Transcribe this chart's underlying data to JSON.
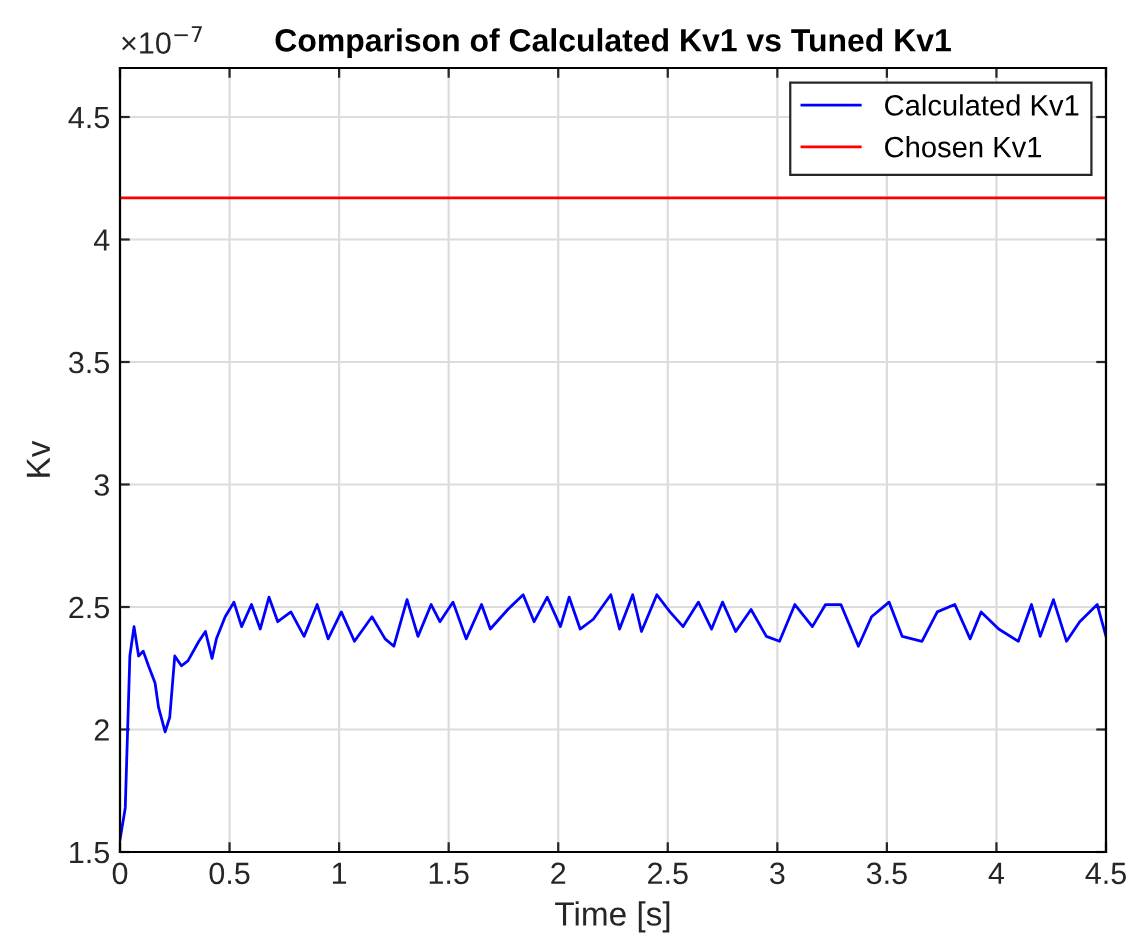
{
  "chart_data": {
    "type": "line",
    "title": "Comparison of Calculated Kv1 vs Tuned Kv1",
    "xlabel": "Time [s]",
    "ylabel": "Kv",
    "annotations": [
      "×10$^{−7}$"
    ],
    "xlim": [
      0,
      4.5
    ],
    "xticks": [
      0,
      0.5,
      1,
      1.5,
      2,
      2.5,
      3,
      3.5,
      4,
      4.5
    ],
    "ylim": [
      1.5,
      4.7
    ],
    "yticks": [
      1.5,
      2,
      2.5,
      3,
      3.5,
      4,
      4.5
    ],
    "grid": true,
    "legend": "top right",
    "marker": "none",
    "line_style": "solid",
    "series": [
      {
        "name": "Calculated Kv1",
        "color": "#0000ff",
        "x": [
          0,
          0.024,
          0.045,
          0.064,
          0.085,
          0.106,
          0.13,
          0.16,
          0.176,
          0.206,
          0.227,
          0.25,
          0.28,
          0.31,
          0.36,
          0.39,
          0.42,
          0.44,
          0.48,
          0.52,
          0.555,
          0.6,
          0.64,
          0.68,
          0.72,
          0.78,
          0.84,
          0.9,
          0.95,
          1.01,
          1.07,
          1.15,
          1.21,
          1.25,
          1.31,
          1.36,
          1.42,
          1.46,
          1.52,
          1.58,
          1.65,
          1.69,
          1.77,
          1.84,
          1.89,
          1.95,
          2.01,
          2.05,
          2.1,
          2.16,
          2.24,
          2.28,
          2.34,
          2.38,
          2.45,
          2.51,
          2.57,
          2.64,
          2.7,
          2.75,
          2.81,
          2.88,
          2.95,
          3.01,
          3.08,
          3.16,
          3.22,
          3.29,
          3.37,
          3.43,
          3.51,
          3.57,
          3.66,
          3.73,
          3.81,
          3.88,
          3.93,
          4.01,
          4.1,
          4.16,
          4.2,
          4.26,
          4.32,
          4.38,
          4.46,
          4.5
        ],
        "values": [
          1.55,
          1.68,
          2.3,
          2.42,
          2.3,
          2.32,
          2.26,
          2.19,
          2.09,
          1.99,
          2.05,
          2.3,
          2.26,
          2.28,
          2.36,
          2.4,
          2.29,
          2.37,
          2.46,
          2.52,
          2.42,
          2.51,
          2.41,
          2.54,
          2.44,
          2.48,
          2.38,
          2.51,
          2.37,
          2.48,
          2.36,
          2.46,
          2.37,
          2.34,
          2.53,
          2.38,
          2.51,
          2.44,
          2.52,
          2.37,
          2.51,
          2.41,
          2.49,
          2.55,
          2.44,
          2.54,
          2.42,
          2.54,
          2.41,
          2.45,
          2.55,
          2.41,
          2.55,
          2.4,
          2.55,
          2.48,
          2.42,
          2.52,
          2.41,
          2.52,
          2.4,
          2.49,
          2.38,
          2.36,
          2.51,
          2.42,
          2.51,
          2.51,
          2.34,
          2.46,
          2.52,
          2.38,
          2.36,
          2.48,
          2.51,
          2.37,
          2.48,
          2.41,
          2.36,
          2.51,
          2.38,
          2.53,
          2.36,
          2.44,
          2.51,
          2.38
        ]
      },
      {
        "name": "Chosen Kv1",
        "color": "#ff0000",
        "x": [
          0,
          4.5
        ],
        "values": [
          4.17,
          4.17
        ]
      }
    ]
  }
}
